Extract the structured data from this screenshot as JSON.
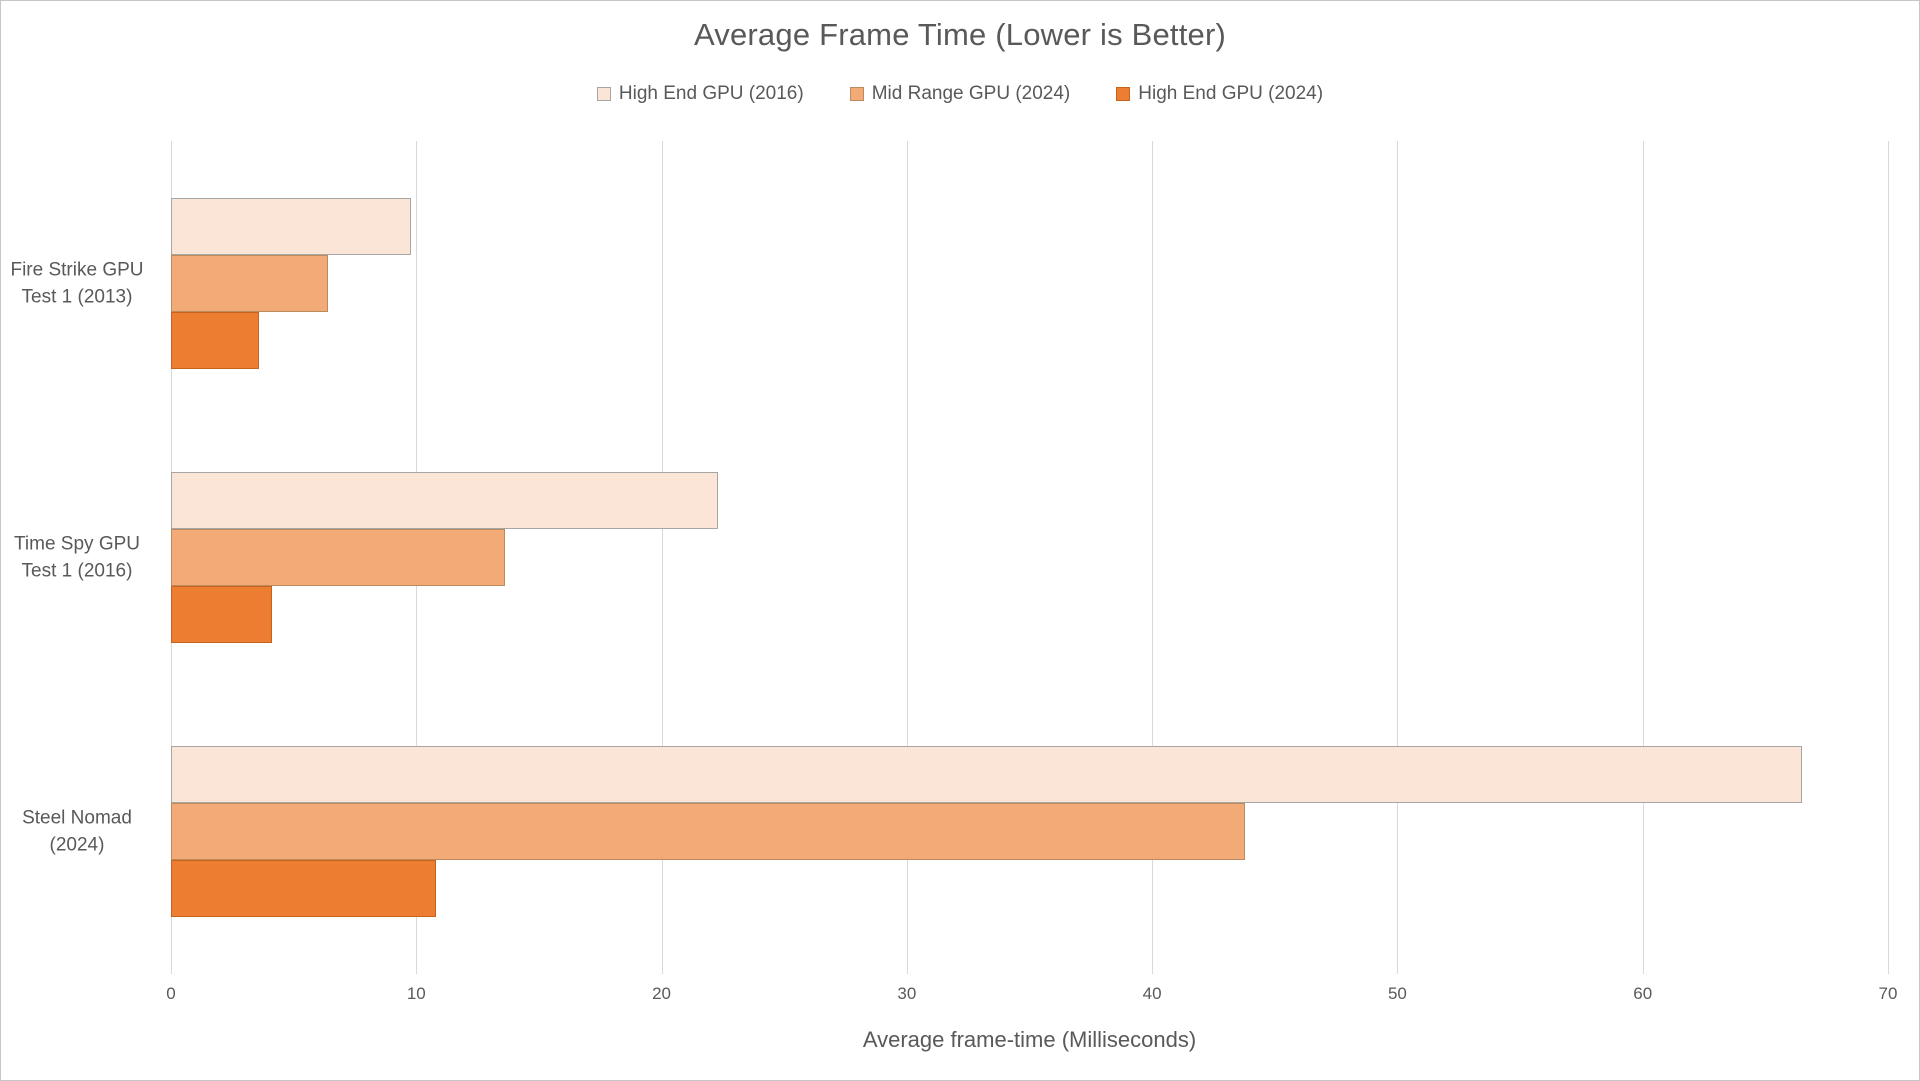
{
  "window": {
    "background": "#ffffff",
    "border_color": "#c6c6c6",
    "text_color": "#595959",
    "gridline_color": "#d9d9d9"
  },
  "chart_data": {
    "type": "bar",
    "orientation": "horizontal",
    "title": "Average Frame Time (Lower is Better)",
    "xlabel": "Average frame-time (Milliseconds)",
    "ylabel": "",
    "categories": [
      "Fire Strike GPU\nTest 1 (2013)",
      "Time Spy GPU\nTest 1 (2016)",
      "Steel Nomad\n(2024)"
    ],
    "series": [
      {
        "name": "High End GPU (2016)",
        "color": "#fbe5d6",
        "border": "#a6a6a6",
        "values": [
          9.8,
          22.3,
          66.5
        ]
      },
      {
        "name": "Mid Range GPU (2024)",
        "color": "#f2ab77",
        "border": "#bd8a5e",
        "values": [
          6.4,
          13.6,
          43.8
        ]
      },
      {
        "name": "High End GPU (2024)",
        "color": "#ed7d31",
        "border": "#c4641f",
        "values": [
          3.6,
          4.1,
          10.8
        ]
      }
    ],
    "xlim": [
      0,
      70
    ],
    "xticks": [
      0,
      10,
      20,
      30,
      40,
      50,
      60,
      70
    ],
    "grid": true,
    "legend_position": "top",
    "lower_is_better": true
  }
}
